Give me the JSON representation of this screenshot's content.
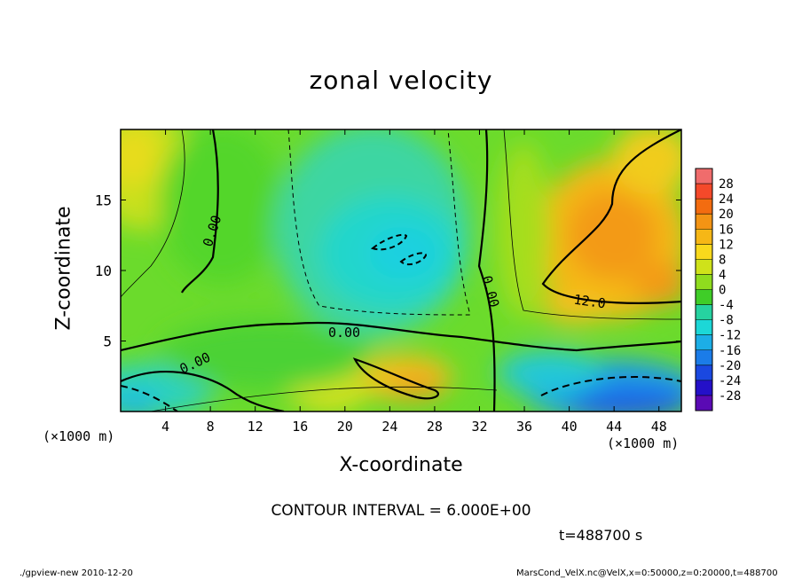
{
  "chart_data": {
    "type": "heatmap",
    "title": "zonal velocity",
    "xlabel": "X-coordinate",
    "ylabel": "Z-coordinate",
    "x_unit_label": "(×1000 m)",
    "x_unit_label_right": "(×1000 m)",
    "xlim": [
      0,
      50
    ],
    "ylim": [
      0,
      20
    ],
    "x_ticks": [
      "4",
      "8",
      "12",
      "16",
      "20",
      "24",
      "28",
      "32",
      "36",
      "40",
      "44",
      "48"
    ],
    "y_ticks": [
      "5",
      "10",
      "15"
    ],
    "colorbar": {
      "labels": [
        "28",
        "24",
        "20",
        "16",
        "12",
        "8",
        "4",
        "0",
        "-4",
        "-8",
        "-12",
        "-16",
        "-20",
        "-24",
        "-28"
      ],
      "range": [
        -30,
        30
      ],
      "colors": [
        "#f06c6c",
        "#f4492a",
        "#f36c10",
        "#f39414",
        "#f6b716",
        "#f9d91c",
        "#cfe21a",
        "#8fdc1e",
        "#3fcd28",
        "#26d2a0",
        "#1cd7d7",
        "#1caee6",
        "#1b7ce8",
        "#1a48e0",
        "#2410c8",
        "#5a0ab4"
      ]
    },
    "contour_labels": [
      "0.00",
      "0.00",
      "0.00",
      "0.00",
      "12.0"
    ],
    "contour_interval_text": "CONTOUR INTERVAL = 6.000E+00",
    "time_text": "t=488700  s"
  },
  "footer": {
    "left": "./gpview-new   2010-12-20",
    "right": "MarsCond_VelX.nc@VelX,x=0:50000,z=0:20000,t=488700"
  }
}
